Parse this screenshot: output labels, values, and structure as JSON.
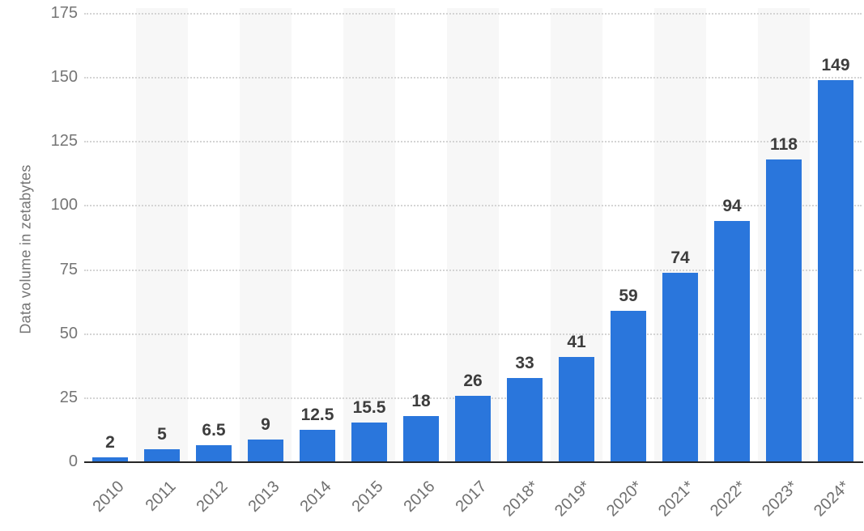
{
  "chart_data": {
    "type": "bar",
    "title": "",
    "xlabel": "",
    "ylabel": "Data volume in zetabytes",
    "categories": [
      "2010",
      "2011",
      "2012",
      "2013",
      "2014",
      "2015",
      "2016",
      "2017",
      "2018*",
      "2019*",
      "2020*",
      "2021*",
      "2022*",
      "2023*",
      "2024*"
    ],
    "values": [
      2,
      5,
      6.5,
      9,
      12.5,
      15.5,
      18,
      26,
      33,
      41,
      59,
      74,
      94,
      118,
      149
    ],
    "ylim": [
      0,
      175
    ],
    "yticks": [
      0,
      25,
      50,
      75,
      100,
      125,
      150,
      175
    ],
    "grid": "horizontal-dotted",
    "legend_position": "none",
    "plot_background": "alternating vertical stripes behind every second category column",
    "colors": {
      "bar": "#2a76dc",
      "axis_text": "#757575",
      "x_axis_text": "#707070",
      "value_label": "#3d3d3d",
      "gridline": "#d4d4d4",
      "stripe": "#f7f7f7",
      "baseline": "#262626",
      "background": "#ffffff"
    }
  }
}
